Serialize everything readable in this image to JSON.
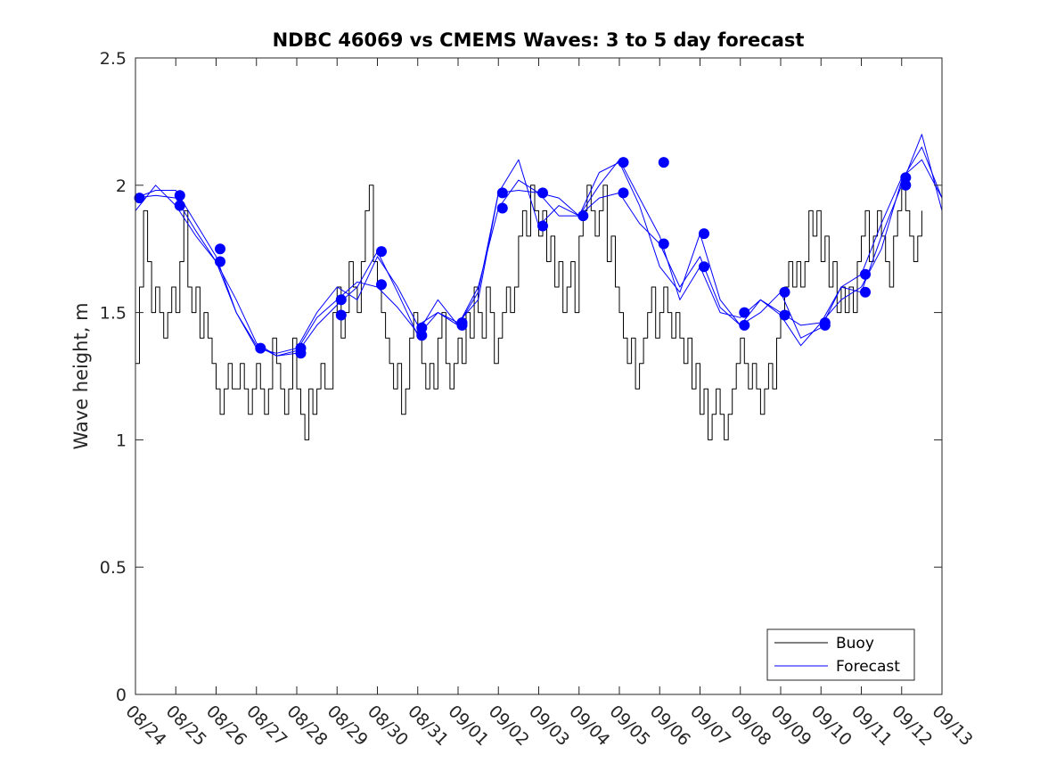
{
  "chart_data": {
    "type": "line",
    "title": "NDBC 46069 vs CMEMS Waves: 3 to 5 day forecast",
    "xlabel": "",
    "ylabel": "Wave height, m",
    "xlim": [
      0,
      20
    ],
    "ylim": [
      0,
      2.5
    ],
    "x_tick_labels": [
      "08/24",
      "08/25",
      "08/26",
      "08/27",
      "08/28",
      "08/29",
      "08/30",
      "08/31",
      "09/01",
      "09/02",
      "09/03",
      "09/04",
      "09/05",
      "09/06",
      "09/07",
      "09/08",
      "09/09",
      "09/10",
      "09/11",
      "09/12",
      "09/13"
    ],
    "y_ticks": [
      0,
      0.5,
      1,
      1.5,
      2,
      2.5
    ],
    "y_tick_labels": [
      "0",
      "0.5",
      "1",
      "1.5",
      "2",
      "2.5"
    ],
    "grid": false,
    "legend": {
      "placement": "bottom-right",
      "entries": [
        "Buoy",
        "Forecast"
      ]
    },
    "colors": {
      "buoy": "#000000",
      "forecast": "#0000ff",
      "axis": "#262626"
    },
    "series": [
      {
        "name": "Buoy",
        "color": "#000000",
        "x": [
          0,
          0.1,
          0.2,
          0.3,
          0.4,
          0.5,
          0.6,
          0.7,
          0.8,
          0.9,
          1.0,
          1.1,
          1.2,
          1.3,
          1.4,
          1.5,
          1.6,
          1.7,
          1.8,
          1.9,
          2.0,
          2.1,
          2.2,
          2.3,
          2.4,
          2.5,
          2.6,
          2.7,
          2.8,
          2.9,
          3.0,
          3.1,
          3.2,
          3.3,
          3.4,
          3.5,
          3.6,
          3.7,
          3.8,
          3.9,
          4.0,
          4.1,
          4.2,
          4.3,
          4.4,
          4.5,
          4.6,
          4.7,
          4.8,
          4.9,
          5.0,
          5.1,
          5.2,
          5.3,
          5.4,
          5.5,
          5.6,
          5.7,
          5.8,
          5.9,
          6.0,
          6.1,
          6.2,
          6.3,
          6.4,
          6.5,
          6.6,
          6.7,
          6.8,
          6.9,
          7.0,
          7.1,
          7.2,
          7.3,
          7.4,
          7.5,
          7.6,
          7.7,
          7.8,
          7.9,
          8.0,
          8.1,
          8.2,
          8.3,
          8.4,
          8.5,
          8.6,
          8.7,
          8.8,
          8.9,
          9.0,
          9.1,
          9.2,
          9.3,
          9.4,
          9.5,
          9.6,
          9.7,
          9.8,
          9.9,
          10.0,
          10.1,
          10.2,
          10.3,
          10.4,
          10.5,
          10.6,
          10.7,
          10.8,
          10.9,
          11.0,
          11.1,
          11.2,
          11.3,
          11.4,
          11.5,
          11.6,
          11.7,
          11.8,
          11.9,
          12.0,
          12.1,
          12.2,
          12.3,
          12.4,
          12.5,
          12.6,
          12.7,
          12.8,
          12.9,
          13.0,
          13.1,
          13.2,
          13.3,
          13.4,
          13.5,
          13.6,
          13.7,
          13.8,
          13.9,
          14.0,
          14.1,
          14.2,
          14.3,
          14.4,
          14.5,
          14.6,
          14.7,
          14.8,
          14.9,
          15.0,
          15.1,
          15.2,
          15.3,
          15.4,
          15.5,
          15.6,
          15.7,
          15.8,
          15.9,
          16.0,
          16.1,
          16.2,
          16.3,
          16.4,
          16.5,
          16.6,
          16.7,
          16.8,
          16.9,
          17.0,
          17.1,
          17.2,
          17.3,
          17.4,
          17.5,
          17.6,
          17.7,
          17.8,
          17.9,
          18.0,
          18.1,
          18.2,
          18.3,
          18.4,
          18.5,
          18.6,
          18.7,
          18.8,
          18.9,
          19.0,
          19.1,
          19.2,
          19.3,
          19.4,
          19.5
        ],
        "values": [
          1.3,
          1.6,
          1.9,
          1.7,
          1.5,
          1.6,
          1.5,
          1.4,
          1.5,
          1.6,
          1.5,
          1.7,
          1.9,
          1.6,
          1.5,
          1.6,
          1.4,
          1.5,
          1.4,
          1.3,
          1.2,
          1.1,
          1.2,
          1.3,
          1.2,
          1.2,
          1.3,
          1.2,
          1.1,
          1.2,
          1.3,
          1.2,
          1.1,
          1.2,
          1.4,
          1.3,
          1.2,
          1.1,
          1.2,
          1.4,
          1.2,
          1.1,
          1.0,
          1.2,
          1.1,
          1.2,
          1.3,
          1.2,
          1.2,
          1.5,
          1.6,
          1.4,
          1.5,
          1.7,
          1.6,
          1.5,
          1.7,
          1.9,
          2.0,
          1.7,
          1.6,
          1.5,
          1.4,
          1.3,
          1.2,
          1.3,
          1.1,
          1.2,
          1.4,
          1.5,
          1.4,
          1.3,
          1.2,
          1.3,
          1.2,
          1.4,
          1.5,
          1.3,
          1.2,
          1.3,
          1.4,
          1.3,
          1.5,
          1.4,
          1.6,
          1.5,
          1.4,
          1.6,
          1.5,
          1.3,
          1.4,
          1.5,
          1.6,
          1.5,
          1.6,
          1.8,
          1.9,
          1.8,
          2.0,
          1.9,
          1.8,
          1.9,
          1.7,
          1.8,
          1.6,
          1.7,
          1.5,
          1.6,
          1.7,
          1.5,
          1.8,
          1.9,
          2.0,
          1.9,
          1.8,
          1.9,
          2.0,
          1.7,
          1.8,
          1.6,
          1.5,
          1.4,
          1.3,
          1.4,
          1.2,
          1.3,
          1.4,
          1.5,
          1.6,
          1.4,
          1.5,
          1.6,
          1.5,
          1.4,
          1.5,
          1.4,
          1.3,
          1.4,
          1.2,
          1.3,
          1.1,
          1.2,
          1.0,
          1.1,
          1.2,
          1.1,
          1.0,
          1.1,
          1.2,
          1.3,
          1.4,
          1.3,
          1.2,
          1.3,
          1.2,
          1.1,
          1.2,
          1.3,
          1.2,
          1.4,
          1.5,
          1.6,
          1.7,
          1.6,
          1.7,
          1.6,
          1.7,
          1.9,
          1.8,
          1.9,
          1.7,
          1.8,
          1.6,
          1.7,
          1.5,
          1.6,
          1.5,
          1.6,
          1.5,
          1.7,
          1.8,
          1.9,
          1.7,
          1.8,
          1.9,
          1.8,
          1.7,
          1.6,
          1.8,
          1.9,
          2.0,
          1.9,
          1.8,
          1.7,
          1.8,
          1.9
        ]
      },
      {
        "name": "Forecast",
        "color": "#0000ff",
        "x": [
          0,
          0.5,
          1.0,
          1.5,
          2.0,
          2.5,
          3.0,
          3.5,
          4.0,
          4.5,
          5.0,
          5.5,
          6.0,
          6.5,
          7.0,
          7.5,
          8.0,
          8.5,
          9.0,
          9.5,
          10.0,
          10.5,
          11.0,
          11.5,
          12.0,
          12.5,
          13.0,
          13.5,
          14.0,
          14.5,
          15.0,
          15.5,
          16.0,
          16.5,
          17.0,
          17.5,
          18.0,
          18.5,
          19.0,
          19.5,
          20.0
        ],
        "values": [
          1.95,
          1.98,
          1.98,
          1.85,
          1.72,
          1.5,
          1.36,
          1.34,
          1.36,
          1.5,
          1.6,
          1.55,
          1.72,
          1.6,
          1.45,
          1.5,
          1.46,
          1.55,
          1.97,
          1.98,
          1.97,
          1.95,
          1.88,
          2.0,
          2.1,
          1.95,
          1.8,
          1.55,
          1.68,
          1.5,
          1.48,
          1.55,
          1.5,
          1.45,
          1.46,
          1.55,
          1.6,
          1.75,
          2.02,
          2.15,
          1.95
        ]
      },
      {
        "name": "Forecast",
        "color": "#0000ff",
        "x": [
          0,
          0.5,
          1.0,
          1.5,
          2.0,
          2.5,
          3.0,
          3.5,
          4.0,
          4.5,
          5.0,
          5.5,
          6.0,
          6.5,
          7.0,
          7.5,
          8.0,
          8.5,
          9.0,
          9.5,
          10.0,
          10.5,
          11.0,
          11.5,
          12.0,
          12.5,
          13.0,
          13.5,
          14.0,
          14.5,
          15.0,
          15.5,
          16.0,
          16.5,
          17.0,
          17.5,
          18.0,
          18.5,
          19.0,
          19.5,
          20.0
        ],
        "values": [
          1.9,
          2.0,
          1.92,
          1.8,
          1.7,
          1.55,
          1.38,
          1.33,
          1.35,
          1.48,
          1.55,
          1.62,
          1.6,
          1.52,
          1.42,
          1.55,
          1.45,
          1.6,
          1.91,
          2.02,
          1.97,
          1.88,
          1.88,
          1.95,
          1.97,
          1.85,
          1.77,
          1.6,
          1.72,
          1.52,
          1.45,
          1.5,
          1.58,
          1.4,
          1.44,
          1.6,
          1.58,
          1.8,
          2.0,
          2.2,
          1.9
        ]
      },
      {
        "name": "Forecast",
        "color": "#0000ff",
        "x": [
          0,
          0.5,
          1.0,
          1.5,
          2.0,
          2.5,
          3.0,
          3.5,
          4.0,
          4.5,
          5.0,
          5.5,
          6.0,
          6.5,
          7.0,
          7.5,
          8.0,
          8.5,
          9.0,
          9.5,
          10.0,
          10.5,
          11.0,
          11.5,
          12.0,
          12.5,
          13.0,
          13.5,
          14.0,
          14.5,
          15.0,
          15.5,
          16.0,
          16.5,
          17.0,
          17.5,
          18.0,
          18.5,
          19.0,
          19.5,
          20.0
        ],
        "values": [
          1.95,
          1.96,
          1.95,
          1.82,
          1.7,
          1.5,
          1.37,
          1.33,
          1.34,
          1.45,
          1.53,
          1.6,
          1.74,
          1.58,
          1.41,
          1.5,
          1.45,
          1.58,
          1.97,
          2.1,
          1.84,
          1.92,
          1.88,
          2.05,
          2.09,
          1.92,
          1.68,
          1.58,
          1.81,
          1.55,
          1.45,
          1.55,
          1.49,
          1.37,
          1.46,
          1.6,
          1.65,
          1.85,
          2.03,
          2.1,
          1.95
        ]
      }
    ],
    "markers": {
      "name": "Forecast",
      "color": "#0000ff",
      "x": [
        0.1,
        1.1,
        1.1,
        2.1,
        2.1,
        3.1,
        4.1,
        4.1,
        5.1,
        5.1,
        6.1,
        6.1,
        7.1,
        7.1,
        8.1,
        8.1,
        9.1,
        9.1,
        10.1,
        10.1,
        11.1,
        12.1,
        12.1,
        13.1,
        13.1,
        14.1,
        14.1,
        15.1,
        15.1,
        16.1,
        16.1,
        17.1,
        17.1,
        18.1,
        18.1,
        19.1,
        19.1
      ],
      "values": [
        1.95,
        1.96,
        1.92,
        1.75,
        1.7,
        1.36,
        1.36,
        1.34,
        1.55,
        1.49,
        1.74,
        1.61,
        1.44,
        1.41,
        1.46,
        1.45,
        1.97,
        1.91,
        1.97,
        1.84,
        1.88,
        2.09,
        1.97,
        2.09,
        1.77,
        1.81,
        1.68,
        1.5,
        1.45,
        1.58,
        1.49,
        1.46,
        1.45,
        1.65,
        1.58,
        2.03,
        2.0
      ]
    }
  }
}
